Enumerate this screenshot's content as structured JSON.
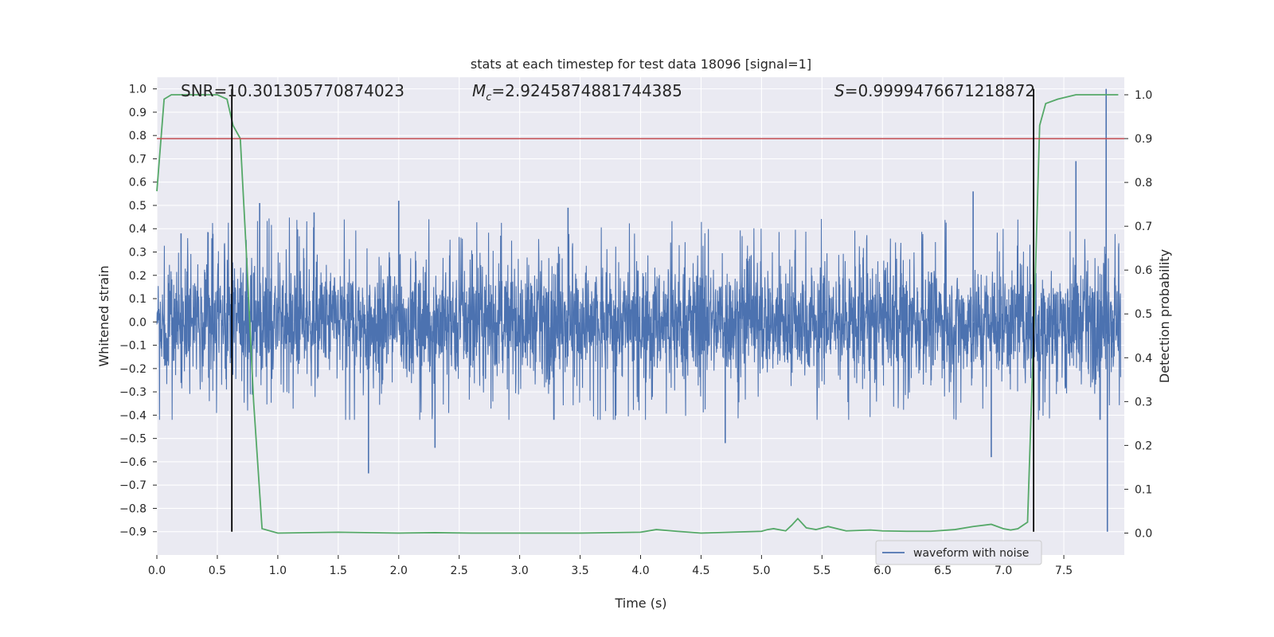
{
  "chart_data": {
    "type": "line",
    "title": "stats at each timestep for test data 18096 [signal=1]",
    "xlabel": "Time (s)",
    "ylabel": "Whitened strain",
    "y2label": "Detection probability",
    "xlim": [
      0,
      8.0
    ],
    "ylim": [
      -1.0,
      1.05
    ],
    "y2lim": [
      -0.05,
      1.04
    ],
    "x_ticks": [
      0.0,
      0.5,
      1.0,
      1.5,
      2.0,
      2.5,
      3.0,
      3.5,
      4.0,
      4.5,
      5.0,
      5.5,
      6.0,
      6.5,
      7.0,
      7.5
    ],
    "x_tick_labels": [
      "0.0",
      "0.5",
      "1.0",
      "1.5",
      "2.0",
      "2.5",
      "3.0",
      "3.5",
      "4.0",
      "4.5",
      "5.0",
      "5.5",
      "6.0",
      "6.5",
      "7.0",
      "7.5"
    ],
    "y_ticks": [
      1.0,
      0.9,
      0.8,
      0.7,
      0.6,
      0.5,
      0.4,
      0.3,
      0.2,
      0.1,
      0.0,
      -0.1,
      -0.2,
      -0.3,
      -0.4,
      -0.5,
      -0.6,
      -0.7,
      -0.8,
      -0.9
    ],
    "y_tick_labels": [
      "1.0",
      "0.9",
      "0.8",
      "0.7",
      "0.6",
      "0.5",
      "0.4",
      "0.3",
      "0.2",
      "0.1",
      "0.0",
      "−0.1",
      "−0.2",
      "−0.3",
      "−0.4",
      "−0.5",
      "−0.6",
      "−0.7",
      "−0.8",
      "−0.9"
    ],
    "y2_ticks": [
      1.0,
      0.9,
      0.8,
      0.7,
      0.6,
      0.5,
      0.4,
      0.3,
      0.2,
      0.1,
      0.0
    ],
    "y2_tick_labels": [
      "1.0",
      "0.9",
      "0.8",
      "0.7",
      "0.6",
      "0.5",
      "0.4",
      "0.3",
      "0.2",
      "0.1",
      "0.0"
    ],
    "grid": true,
    "legend": {
      "location": "lower-right",
      "entries": [
        "waveform with noise"
      ]
    },
    "annotations": {
      "snr": "SNR=10.301305770874023",
      "mc_symbol": "M",
      "mc_sub": "c",
      "mc_value": "=2.9245874881744385",
      "s_symbol": "S",
      "s_value": "=0.9999476671218872"
    },
    "vertical_lines_x": [
      0.62,
      7.25
    ],
    "threshold_y2": 0.9,
    "series": [
      {
        "name": "waveform with noise",
        "axis": "left",
        "color": "#4c72b0",
        "kind": "noisy-strain",
        "typical_band": [
          -0.25,
          0.25
        ],
        "peaks": [
          {
            "x": 0.2,
            "y": 0.38
          },
          {
            "x": 0.85,
            "y": 0.51
          },
          {
            "x": 1.3,
            "y": 0.47
          },
          {
            "x": 1.75,
            "y": -0.65
          },
          {
            "x": 2.0,
            "y": 0.52
          },
          {
            "x": 2.3,
            "y": -0.54
          },
          {
            "x": 3.4,
            "y": 0.49
          },
          {
            "x": 4.7,
            "y": -0.52
          },
          {
            "x": 6.75,
            "y": 0.56
          },
          {
            "x": 6.9,
            "y": -0.58
          },
          {
            "x": 7.6,
            "y": 0.69
          },
          {
            "x": 7.85,
            "y": 1.0
          },
          {
            "x": 7.86,
            "y": -0.9
          }
        ]
      },
      {
        "name": "detection probability",
        "axis": "right",
        "color": "#55a868",
        "x": [
          0.0,
          0.06,
          0.12,
          0.2,
          0.3,
          0.4,
          0.5,
          0.58,
          0.63,
          0.69,
          0.74,
          0.8,
          0.87,
          1.0,
          1.5,
          2.0,
          2.3,
          2.6,
          3.0,
          3.5,
          4.0,
          4.13,
          4.3,
          4.5,
          5.0,
          5.05,
          5.1,
          5.2,
          5.25,
          5.3,
          5.37,
          5.45,
          5.55,
          5.7,
          5.9,
          6.0,
          6.2,
          6.4,
          6.6,
          6.75,
          6.9,
          7.0,
          7.06,
          7.12,
          7.2,
          7.25,
          7.3,
          7.35,
          7.45,
          7.6,
          7.8,
          7.95
        ],
        "y": [
          0.78,
          0.99,
          1.0,
          1.0,
          1.0,
          1.0,
          1.0,
          0.99,
          0.93,
          0.9,
          0.64,
          0.3,
          0.01,
          0.0,
          0.002,
          0.0,
          0.001,
          0.0,
          0.0,
          0.0,
          0.002,
          0.008,
          0.004,
          0.0,
          0.004,
          0.008,
          0.01,
          0.005,
          0.018,
          0.033,
          0.012,
          0.008,
          0.015,
          0.005,
          0.007,
          0.005,
          0.004,
          0.004,
          0.008,
          0.015,
          0.02,
          0.01,
          0.007,
          0.01,
          0.025,
          0.45,
          0.93,
          0.98,
          0.99,
          1.0,
          1.0,
          1.0
        ]
      }
    ]
  }
}
